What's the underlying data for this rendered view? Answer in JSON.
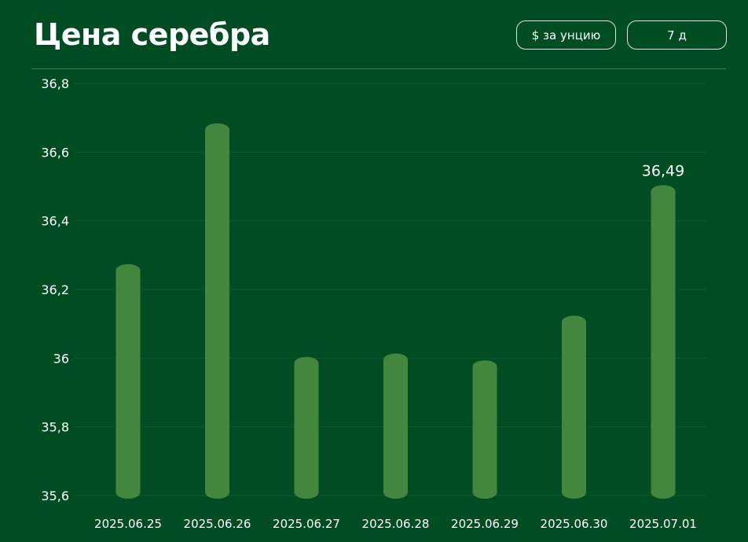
{
  "header": {
    "title": "Цена серебра",
    "unit_button": "$ за унцию",
    "range_button": "7 д"
  },
  "colors": {
    "background": "#004D23",
    "bar": "#43873F",
    "text": "#ffffff",
    "divider": "#3E7E4D"
  },
  "chart_data": {
    "type": "bar",
    "categories": [
      "2025.06.25",
      "2025.06.26",
      "2025.06.27",
      "2025.06.28",
      "2025.06.29",
      "2025.06.30",
      "2025.07.01"
    ],
    "values": [
      36.26,
      36.67,
      35.99,
      36.0,
      35.98,
      36.11,
      36.49
    ],
    "ylim": [
      35.6,
      36.8
    ],
    "yticks": [
      35.6,
      35.8,
      36,
      36.2,
      36.4,
      36.6,
      36.8
    ],
    "ytick_labels": [
      "35,6",
      "35,8",
      "36",
      "36,2",
      "36,4",
      "36,6",
      "36,8"
    ],
    "annotation": {
      "category": "2025.07.01",
      "label": "36,49"
    },
    "grid": true,
    "legend": "none"
  }
}
